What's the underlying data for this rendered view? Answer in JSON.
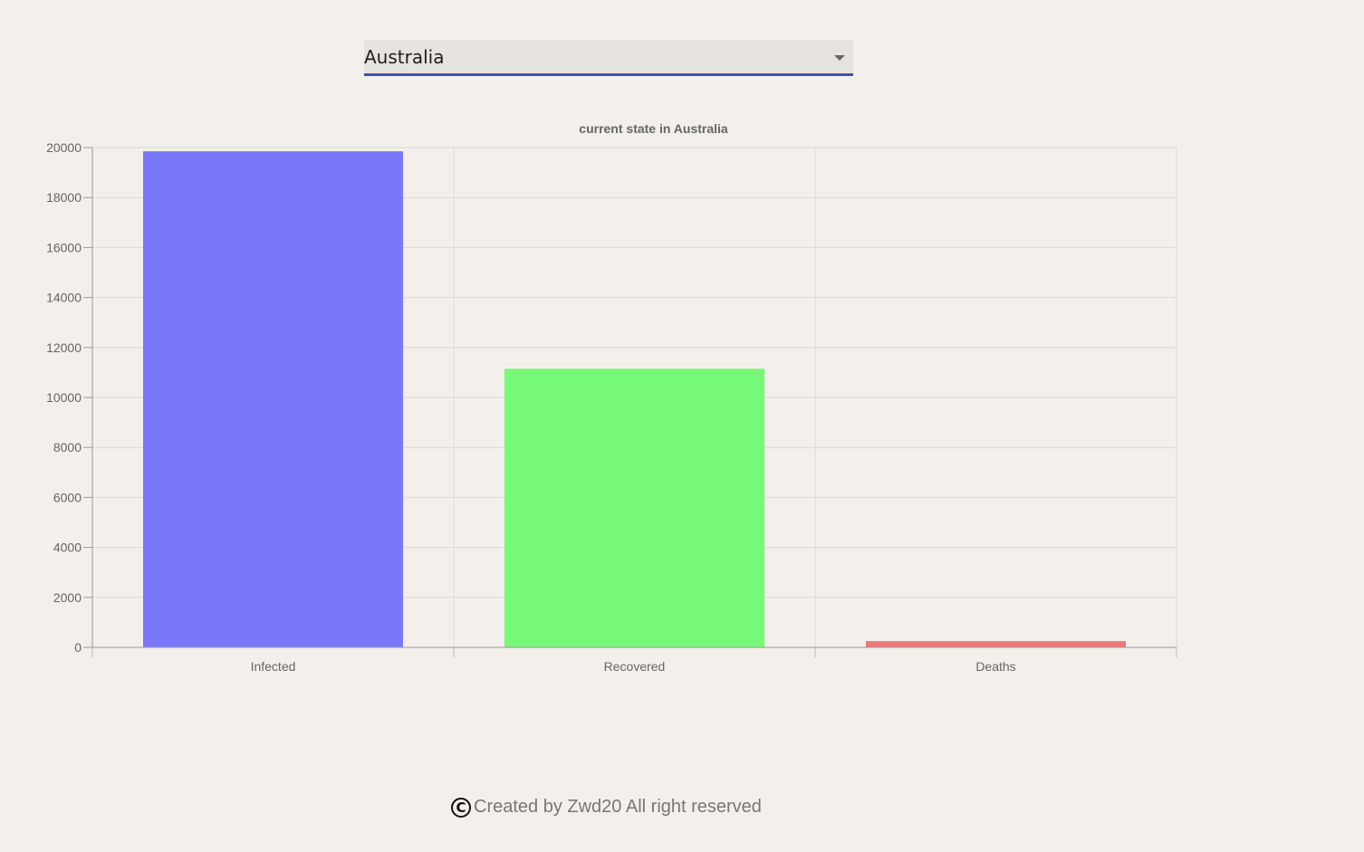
{
  "country_select": {
    "selected": "Australia"
  },
  "footer": {
    "icon": "copyright-icon",
    "symbol": "C",
    "text": "Created by Zwd20 All right reserved"
  },
  "chart_data": {
    "type": "bar",
    "title": "current state in Australia",
    "categories": [
      "Infected",
      "Recovered",
      "Deaths"
    ],
    "values": [
      19850,
      11150,
      250
    ],
    "colors": [
      "#7878f8",
      "#78f878",
      "#f07878"
    ],
    "ylim": [
      0,
      20000
    ],
    "yticks": [
      0,
      2000,
      4000,
      6000,
      8000,
      10000,
      12000,
      14000,
      16000,
      18000,
      20000
    ],
    "grid": true,
    "legend": "none"
  }
}
